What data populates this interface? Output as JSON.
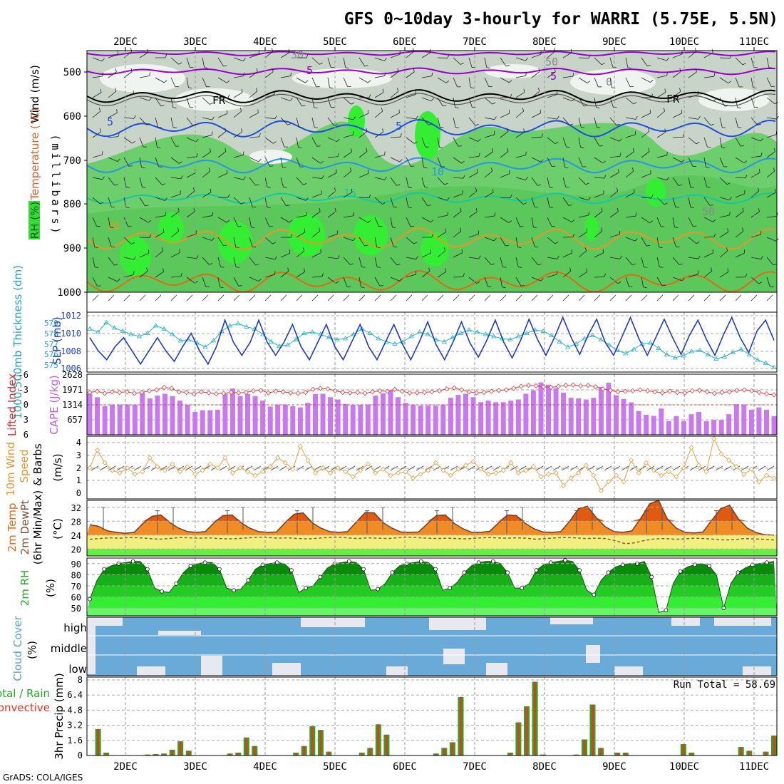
{
  "title": "GFS 0~10day 3-hourly for WARRI (5.75E, 5.5N)",
  "credit": "GrADS: COLA/IGES",
  "dates": [
    "2DEC",
    "3DEC",
    "4DEC",
    "5DEC",
    "6DEC",
    "7DEC",
    "8DEC",
    "9DEC",
    "10DEC",
    "11DEC"
  ],
  "colors": {
    "rh_green": "#2ecc2e",
    "bright_green": "#33ff33",
    "grey": "#c8d0c8",
    "purple": "#9900cc",
    "black": "#000000",
    "blue": "#1e50d8",
    "lightblue": "#2894e6",
    "teal": "#14c8a0",
    "orange": "#e89628",
    "darkorange": "#e06a14",
    "slp": "#1e3cc8",
    "thick": "#28b4c8",
    "cape": "#c878f0",
    "li": "#e03c3c",
    "wind10": "#e8a040",
    "temp": "#f08c28",
    "dew": "#8c5a3c",
    "rh2m": "#22cc22",
    "cloud": "#6aaad8",
    "rain": "#22aa22",
    "conv": "#ee3322"
  },
  "panels": {
    "upper": {
      "ylabel": "(millibars)",
      "labels": [
        "Wind (m/s)",
        "Temperature (°C)",
        "RH (%)"
      ],
      "levels": [
        "500",
        "600",
        "700",
        "800",
        "900",
        "1000"
      ],
      "contour_labels": [
        "5",
        "5",
        "5",
        "5",
        "10",
        "15",
        "20",
        "FR",
        "FR",
        "30",
        "50",
        "50",
        "0"
      ]
    },
    "slp": {
      "label_left": "1000-500mb Thickness (dm)",
      "label_right": "SLP (mb)",
      "ticks_left": [
        "579",
        "578",
        "577",
        "576",
        "575"
      ],
      "ticks_right": [
        "1012",
        "1010",
        "1008",
        "1006"
      ]
    },
    "cape": {
      "label_left": "Lifted Index",
      "label_right": "CAPE (J/kg)",
      "ticks_left": [
        "-6",
        "-3",
        "0",
        "3",
        "6"
      ],
      "ticks_right": [
        "2628",
        "1971",
        "1314",
        "657"
      ]
    },
    "wind10": {
      "label_a": "10m Wind",
      "label_b": "Speed",
      "label_c": "& Barbs",
      "unit": "(m/s)",
      "ticks": [
        "4",
        "3",
        "2",
        "1",
        "0"
      ]
    },
    "temp": {
      "label_a": "2m Temp",
      "label_b": "2m DewPt",
      "label_c": "(6hr Min/Max)",
      "unit": "(°C)",
      "ticks": [
        "32",
        "28",
        "24",
        "20"
      ]
    },
    "rh": {
      "label": "2m RH",
      "unit": "(%)",
      "ticks": [
        "90",
        "80",
        "70",
        "60",
        "50"
      ]
    },
    "cloud": {
      "label": "Cloud Cover",
      "unit": "(%)",
      "layers": [
        "high",
        "middle",
        "low"
      ]
    },
    "precip": {
      "label_a": "Total / Rain",
      "label_b": "Convective",
      "ylabel": "3hr Precip (mm)",
      "ticks": [
        "8",
        "6.4",
        "4.8",
        "3.2",
        "1.6",
        "0"
      ],
      "run_total": "Run Total = 58.69"
    }
  },
  "chart_data": [
    {
      "type": "line",
      "title": "SLP (mb)",
      "ylim": [
        1006,
        1012
      ],
      "values": [
        1009.5,
        1008,
        1007,
        1008.5,
        1009.5,
        1008,
        1006.5,
        1008,
        1009.5,
        1008,
        1006.8,
        1008.5,
        1010,
        1008,
        1006.5,
        1008.5,
        1011.5,
        1009,
        1007.5,
        1009,
        1011.5,
        1009,
        1007.5,
        1009,
        1011,
        1008.5,
        1007,
        1009,
        1011,
        1008.5,
        1007,
        1009,
        1011,
        1008.5,
        1007,
        1009,
        1011,
        1008.8,
        1007,
        1009,
        1011.3,
        1008.7,
        1007,
        1009,
        1011.3,
        1008.9,
        1007.3,
        1009.2,
        1011.5,
        1009,
        1007.2,
        1009.2,
        1011.6,
        1009.3,
        1007.5,
        1009.5,
        1011.8,
        1009.5,
        1007.6,
        1009.8,
        1011.6,
        1009,
        1007.5,
        1009.6,
        1011.8,
        1009.4,
        1007.5,
        1009.5,
        1011.6,
        1009.5,
        1007.6,
        1009.8,
        1011.5,
        1009.3,
        1007.5,
        1009.8,
        1011.8,
        1009.5,
        1007.8,
        1010.3,
        1011.5,
        1009.2
      ],
      "xlim": [
        0,
        81
      ]
    },
    {
      "type": "line",
      "title": "1000-500mb Thickness (dm)",
      "ylim": [
        574.5,
        579.5
      ],
      "values": [
        578.5,
        578.2,
        579.1,
        578.6,
        578.3,
        578,
        577.8,
        578.1,
        578.8,
        578.5,
        578,
        577.4,
        577.5,
        577.2,
        576.8,
        577.4,
        578.3,
        578.8,
        579,
        578.7,
        578.5,
        578,
        577.3,
        576.9,
        577,
        577.5,
        578.1,
        578.2,
        578,
        577.7,
        577.5,
        577.6,
        578,
        578.5,
        578.1,
        577.6,
        577.3,
        577.1,
        577.3,
        577.8,
        578.2,
        578,
        577.5,
        577.3,
        577.7,
        578.1,
        578.4,
        578.2,
        578,
        577.8,
        577.6,
        577.5,
        577.8,
        578.1,
        578.4,
        578.3,
        577.9,
        577.3,
        576.8,
        577.1,
        577.6,
        577.9,
        577.5,
        577,
        576.5,
        576.2,
        576.6,
        577.1,
        577.2,
        576.7,
        576.1,
        575.8,
        576,
        576.4,
        576.5,
        576.1,
        575.7,
        575.9,
        576.3,
        576.6,
        576.1,
        575.6,
        575.3,
        574.9
      ],
      "xlim": [
        0,
        83
      ]
    },
    {
      "type": "bar",
      "title": "CAPE (J/kg)",
      "ylim": [
        0,
        2628
      ],
      "values": [
        1800,
        1650,
        1250,
        1330,
        1330,
        1330,
        1320,
        1850,
        1600,
        1720,
        1800,
        1700,
        1500,
        1300,
        1000,
        1080,
        1080,
        1100,
        1800,
        2030,
        1700,
        1800,
        1700,
        1500,
        1240,
        1330,
        1330,
        1250,
        1200,
        1400,
        1790,
        1800,
        1650,
        1550,
        1350,
        1330,
        1320,
        1330,
        1720,
        1820,
        1950,
        1650,
        1400,
        1330,
        1280,
        1280,
        1280,
        1330,
        1620,
        1750,
        1800,
        1650,
        1430,
        1500,
        1430,
        1430,
        1500,
        1550,
        1800,
        1950,
        2300,
        2200,
        2050,
        1850,
        1620,
        1600,
        1550,
        1620,
        2100,
        2280,
        1730,
        1570,
        1420,
        1040,
        880,
        830,
        1150,
        600,
        820,
        600,
        900,
        1000,
        600,
        650,
        650,
        900,
        1340,
        1330,
        1100,
        1200,
        1100,
        820
      ]
    },
    {
      "type": "line",
      "title": "Lifted Index",
      "ylim": [
        6,
        -6
      ],
      "values": [
        -2.5,
        -2.7,
        -2.3,
        -2.6,
        -2.5,
        -2.6,
        -2.3,
        -2.5,
        -2.8,
        -3,
        -3.5,
        -3.3,
        -2.6,
        -2.5,
        -2.2,
        -2.6,
        -2.4,
        -2.2,
        -2.3,
        -2.5,
        -2.4,
        -2.5,
        -2.8,
        -2.9,
        -2.4,
        -2.7,
        -2.6,
        -2.4,
        -2.3,
        -2.5,
        -3.1,
        -3.3,
        -3.2,
        -2.8,
        -2.5,
        -2.4,
        -2.5,
        -2.3,
        -2.6,
        -2.8,
        -2.7,
        -3.1,
        -2.7,
        -2.4,
        -2.4,
        -2.5,
        -2.6,
        -2.8,
        -3.2,
        -3.4,
        -3,
        -2.6,
        -2.4,
        -2.5,
        -2.7,
        -2.9,
        -3,
        -3.3,
        -3.7,
        -3.9,
        -3.8,
        -3.6,
        -3.5,
        -3.7,
        -3.9,
        -4,
        -3.8,
        -3.9,
        -3.6,
        -3.2,
        -2.9,
        -2.6,
        -2.7,
        -2.8,
        -3,
        -2.8,
        -2.6,
        -2.4,
        -2.7,
        -2.5,
        -2.4,
        -2.8,
        -2.9,
        -2.6,
        -2.3,
        -2.5,
        -2.6,
        -2.9,
        -3,
        -2.8,
        -2.5,
        -2.2,
        -2
      ]
    },
    {
      "type": "line",
      "title": "10m Wind Speed",
      "ylim": [
        0,
        4.5
      ],
      "values": [
        2,
        3.4,
        2.4,
        1.8,
        1.6,
        2,
        1.5,
        1.7,
        2.8,
        2.1,
        1.8,
        2.3,
        1.7,
        2.1,
        1.5,
        1.8,
        2.3,
        2,
        2.8,
        1.6,
        2,
        1.7,
        1.4,
        1.7,
        2.1,
        2.8,
        2.4,
        1.9,
        3.7,
        2.6,
        1.6,
        2,
        1.6,
        2,
        1.7,
        1.3,
        1.8,
        2.3,
        1.6,
        1.9,
        1.4,
        1.6,
        1.7,
        1.2,
        1.5,
        1.8,
        2.4,
        1.8,
        1.4,
        1.9,
        2.2,
        2.5,
        1.9,
        1.5,
        1.6,
        1.8,
        2.4,
        1.6,
        1.8,
        2.1,
        1.3,
        1.5,
        1.6,
        0.6,
        1.2,
        1.6,
        2.2,
        1.4,
        0.2,
        0.9,
        1.4,
        0.9,
        2.6,
        1.6,
        2.4,
        1.8,
        1.4,
        1.7,
        1.3,
        2,
        3.6,
        2.2,
        1.7,
        4.3,
        3.1,
        2.6,
        2.1,
        1.5,
        1.9,
        0.9,
        1.4,
        1.2
      ]
    },
    {
      "type": "area",
      "title": "2m Temp",
      "ylim": [
        18,
        34
      ],
      "values": [
        27,
        26.5,
        25.2,
        24.8,
        24.5,
        24.8,
        27.4,
        29.4,
        29.8,
        27.6,
        26,
        25,
        24.8,
        25,
        27.6,
        29.6,
        29.8,
        27.6,
        26,
        25,
        24.8,
        24.9,
        27.6,
        30,
        30.4,
        27.6,
        26,
        25,
        24.8,
        25,
        27.8,
        30.5,
        30.4,
        27.6,
        26,
        24.9,
        24.8,
        24.9,
        27.3,
        29.6,
        29.8,
        27.4,
        25.8,
        24.8,
        24.8,
        25.1,
        27.5,
        29.8,
        29.6,
        27.4,
        25.8,
        24.9,
        24.8,
        25,
        28,
        31.6,
        32.3,
        29,
        26.4,
        25,
        24.8,
        25.2,
        28.8,
        33,
        34,
        28.6,
        26,
        24.8,
        24.6,
        24.9,
        28.3,
        31.6,
        32.6,
        28.6,
        26,
        24.7,
        24.1,
        24
      ]
    },
    {
      "type": "line",
      "title": "2m DewPt",
      "ylim": [
        18,
        34
      ],
      "values": [
        22.8,
        23,
        23.2,
        23.1,
        23.3,
        23.2,
        23,
        22.8,
        23,
        23.3,
        23.2,
        23.1,
        23.2,
        23,
        22.9,
        23,
        23.2,
        23.4,
        23.3,
        23.1,
        23.2,
        23,
        22.9,
        23.1,
        23.3,
        23.4,
        23.2,
        23,
        23.2,
        23.1,
        23,
        23.2,
        23.4,
        23.3,
        23.1,
        23,
        23.1,
        23,
        22.9,
        23.1,
        23.3,
        23.2,
        23.1,
        23.2,
        23.1,
        22.8,
        23,
        23.2,
        23.3,
        23.2,
        23,
        23.1,
        23,
        22.4,
        21.5,
        21.8,
        22.5,
        22.9,
        23,
        22.8,
        22.9,
        23.1,
        23,
        22.8,
        22.6,
        22.7,
        23,
        22.9,
        22.8,
        22.6
      ]
    },
    {
      "type": "area",
      "title": "2m RH",
      "ylim": [
        43,
        95
      ],
      "values": [
        58,
        75,
        85,
        88,
        90,
        91,
        92,
        92,
        85,
        68,
        65,
        64,
        72,
        82,
        88,
        90,
        91,
        91,
        85,
        68,
        66,
        67,
        75,
        85,
        89,
        90,
        91,
        90,
        84,
        64,
        68,
        70,
        78,
        86,
        90,
        91,
        92,
        91,
        85,
        66,
        67,
        72,
        82,
        88,
        90,
        91,
        92,
        91,
        85,
        66,
        68,
        73,
        82,
        88,
        91,
        92,
        92,
        90,
        82,
        68,
        68,
        72,
        84,
        89,
        91,
        92,
        93,
        92,
        84,
        66,
        62,
        75,
        82,
        87,
        89,
        90,
        90,
        92,
        78,
        46,
        48,
        72,
        83,
        87,
        89,
        90,
        88,
        80,
        50,
        72,
        82,
        86,
        89,
        90,
        91,
        92
      ]
    },
    {
      "type": "bar",
      "title": "3hr Precip (mm)",
      "ylim": [
        0,
        8
      ],
      "values": [
        0,
        2.8,
        0.3,
        0,
        0,
        0,
        0,
        0.1,
        0.15,
        0.2,
        0.6,
        1.5,
        0.5,
        0,
        0,
        0,
        0,
        0.2,
        0.3,
        1.9,
        1,
        0,
        0,
        0,
        0,
        0.3,
        1,
        3.1,
        2.7,
        0.4,
        0,
        0,
        0,
        0.3,
        0.8,
        3.3,
        2.2,
        0,
        0,
        0,
        0,
        0,
        0.2,
        0.8,
        1.4,
        6.2,
        0,
        0,
        0,
        0,
        0,
        0.3,
        3.5,
        5.2,
        7.8,
        0.1,
        0,
        0,
        0,
        0.1,
        1.7,
        5.4,
        0.8,
        0,
        0.3,
        0.3,
        0,
        0,
        0,
        0,
        0,
        0,
        1.2,
        0.3,
        0,
        0,
        0,
        0,
        0,
        0.9,
        0.5,
        0,
        0.4,
        2.1
      ]
    }
  ]
}
